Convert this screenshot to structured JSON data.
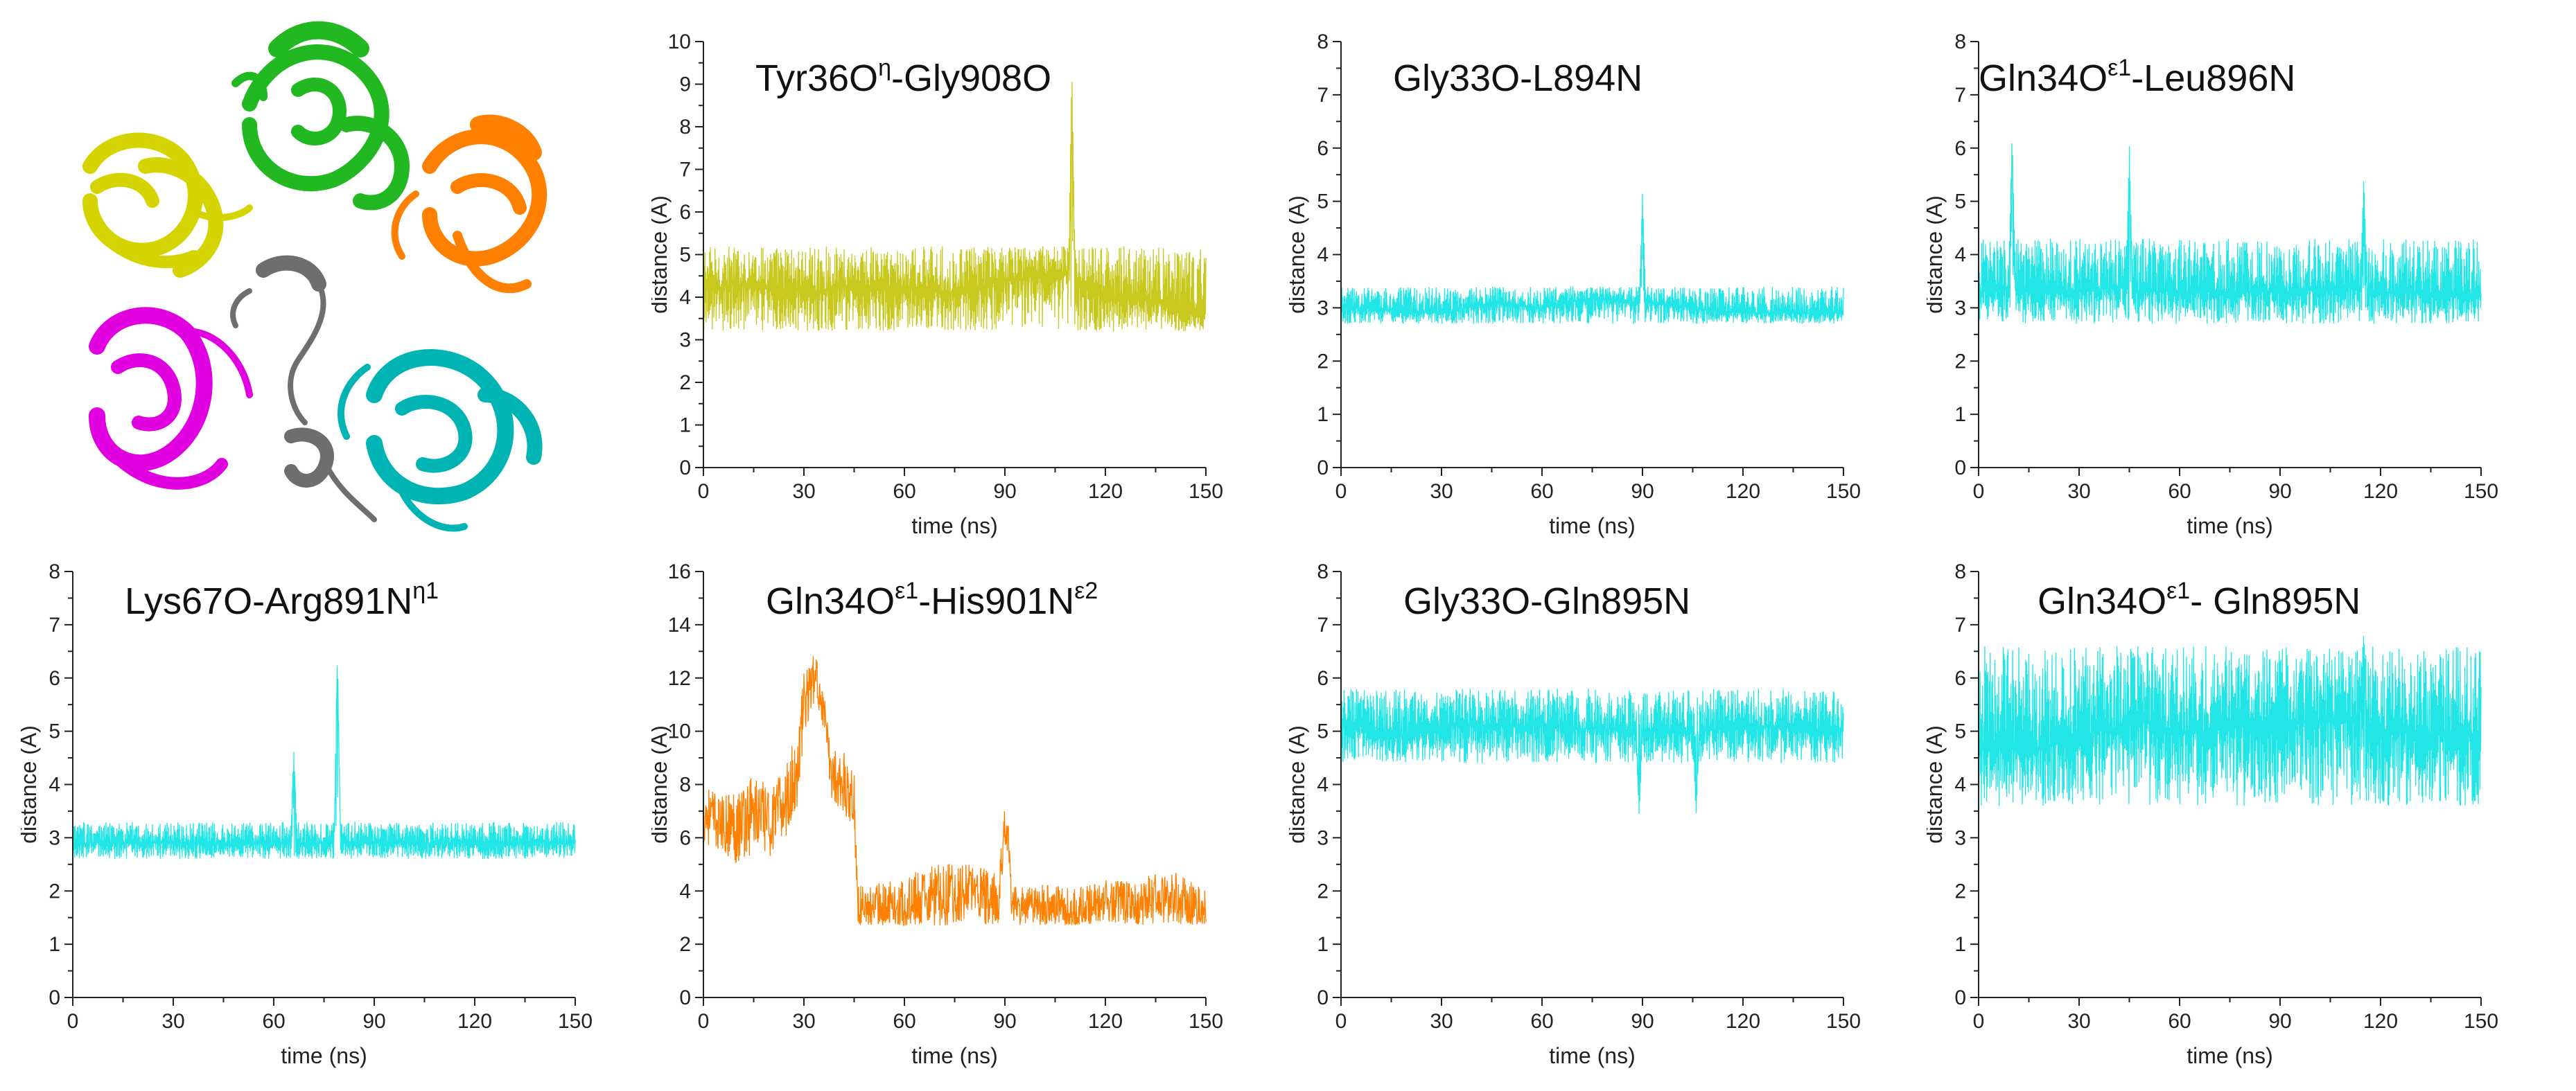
{
  "figure": {
    "structure_image": "protein-pentamer-ribbon-icon",
    "colors": {
      "olive": "#c8c81e",
      "cyan": "#22e6e6",
      "orange": "#ff8000"
    }
  },
  "chart_data": [
    {
      "id": "p1",
      "type": "line",
      "title_base": "Tyr36O",
      "title_sup": "η",
      "title_rest": "-Gly908O",
      "title_sup2": "",
      "title_rest2": "",
      "xlabel": "time (ns)",
      "ylabel": "distance (Å)",
      "xlim": [
        0,
        150
      ],
      "ylim": [
        0,
        10
      ],
      "xticks": [
        0,
        30,
        60,
        90,
        120,
        150
      ],
      "yticks": [
        0,
        1,
        2,
        3,
        4,
        5,
        6,
        7,
        8,
        9,
        10
      ],
      "color": "#c8c81e",
      "series": [
        {
          "name": "Tyr36O-Gly908O",
          "base": 4.2,
          "band": [
            3.2,
            5.2
          ],
          "x": [
            0,
            15,
            30,
            45,
            60,
            75,
            90,
            100,
            109,
            110,
            111,
            120,
            135,
            150
          ],
          "y": [
            4.2,
            4.3,
            4.1,
            4.3,
            4.2,
            4.1,
            4.4,
            4.5,
            4.6,
            9.4,
            4.4,
            4.0,
            3.9,
            3.6
          ]
        }
      ]
    },
    {
      "id": "p2",
      "type": "line",
      "title_base": "Gly33O-L894N",
      "title_sup": "",
      "title_rest": "",
      "title_sup2": "",
      "title_rest2": "",
      "xlabel": "time (ns)",
      "ylabel": "distance (Å)",
      "xlim": [
        0,
        150
      ],
      "ylim": [
        0,
        8
      ],
      "xticks": [
        0,
        30,
        60,
        90,
        120,
        150
      ],
      "yticks": [
        0,
        1,
        2,
        3,
        4,
        5,
        6,
        7,
        8
      ],
      "color": "#22e6e6",
      "series": [
        {
          "name": "Gly33O-L894N",
          "base": 2.95,
          "band": [
            2.7,
            3.4
          ],
          "x": [
            0,
            30,
            45,
            60,
            75,
            89,
            90,
            91,
            105,
            120,
            150
          ],
          "y": [
            3.0,
            2.9,
            3.1,
            3.0,
            3.2,
            3.1,
            5.1,
            3.1,
            3.0,
            2.9,
            2.9
          ]
        }
      ]
    },
    {
      "id": "p3",
      "type": "line",
      "title_base": "Gln34O",
      "title_sup": "ε1",
      "title_rest": "-Leu896N",
      "title_sup2": "",
      "title_rest2": "",
      "xlabel": "time (ns)",
      "ylabel": "distance (Å)",
      "xlim": [
        0,
        150
      ],
      "ylim": [
        0,
        8
      ],
      "xticks": [
        0,
        30,
        60,
        90,
        120,
        150
      ],
      "yticks": [
        0,
        1,
        2,
        3,
        4,
        5,
        6,
        7,
        8
      ],
      "color": "#22e6e6",
      "series": [
        {
          "name": "Gln34O-Leu896N",
          "base": 3.2,
          "band": [
            2.7,
            4.3
          ],
          "x": [
            0,
            9,
            10,
            11,
            30,
            44,
            45,
            46,
            90,
            114,
            115,
            116,
            150
          ],
          "y": [
            3.3,
            3.4,
            6.3,
            3.3,
            3.3,
            3.4,
            6.0,
            3.3,
            3.3,
            3.4,
            5.5,
            3.3,
            3.2
          ]
        }
      ]
    },
    {
      "id": "p4",
      "type": "line",
      "title_base": "Lys67O-Arg891N",
      "title_sup": "η1",
      "title_rest": "",
      "title_sup2": "",
      "title_rest2": "",
      "xlabel": "time (ns)",
      "ylabel": "distance (Å)",
      "xlim": [
        0,
        150
      ],
      "ylim": [
        0,
        8
      ],
      "xticks": [
        0,
        30,
        60,
        90,
        120,
        150
      ],
      "yticks": [
        0,
        1,
        2,
        3,
        4,
        5,
        6,
        7,
        8
      ],
      "color": "#22e6e6",
      "series": [
        {
          "name": "Lys67O-Arg891N",
          "base": 2.9,
          "band": [
            2.6,
            3.3
          ],
          "x": [
            0,
            30,
            65,
            66,
            67,
            78,
            79,
            80,
            100,
            150
          ],
          "y": [
            2.9,
            2.9,
            2.9,
            4.6,
            2.9,
            2.9,
            6.5,
            2.9,
            2.9,
            2.9
          ]
        }
      ]
    },
    {
      "id": "p5",
      "type": "line",
      "title_base": "Gln34O",
      "title_sup": "ε1",
      "title_rest": "-His901N",
      "title_sup2": "ε2",
      "title_rest2": "",
      "xlabel": "time (ns)",
      "ylabel": "distance (Å)",
      "xlim": [
        0,
        150
      ],
      "ylim": [
        0,
        16
      ],
      "xticks": [
        0,
        30,
        60,
        90,
        120,
        150
      ],
      "yticks": [
        0,
        2,
        4,
        6,
        8,
        10,
        12,
        14,
        16
      ],
      "color": "#ff8000",
      "series": [
        {
          "name": "Gln34O-His901N",
          "base": 0,
          "band": [
            0,
            0
          ],
          "x": [
            0,
            5,
            10,
            15,
            20,
            25,
            28,
            30,
            33,
            35,
            38,
            42,
            45,
            46,
            50,
            60,
            70,
            80,
            88,
            90,
            91,
            92,
            95,
            100,
            110,
            120,
            130,
            140,
            150
          ],
          "y": [
            7.0,
            6.5,
            6.5,
            7.0,
            6.5,
            7.5,
            8.5,
            11.0,
            12.0,
            11.5,
            8.5,
            8.0,
            7.5,
            3.5,
            3.3,
            3.5,
            3.8,
            4.0,
            3.6,
            6.5,
            6.0,
            3.4,
            3.4,
            3.5,
            3.3,
            3.5,
            3.6,
            3.8,
            3.4
          ],
          "noise": [
            1.2,
            1.0,
            1.5,
            1.6,
            1.2,
            1.5,
            1.5,
            1.2,
            1.0,
            0.8,
            1.0,
            1.2,
            1.0,
            0.8,
            0.9,
            1.1,
            1.2,
            1.1,
            1.0,
            0.8,
            0.7,
            0.8,
            0.8,
            0.8,
            0.9,
            0.9,
            0.9,
            1.0,
            0.8
          ]
        }
      ]
    },
    {
      "id": "p6",
      "type": "line",
      "title_base": "Gly33O-Gln895N",
      "title_sup": "",
      "title_rest": "",
      "title_sup2": "",
      "title_rest2": "",
      "xlabel": "time (ns)",
      "ylabel": "distance (Å)",
      "xlim": [
        0,
        150
      ],
      "ylim": [
        0,
        8
      ],
      "xticks": [
        0,
        30,
        60,
        90,
        120,
        150
      ],
      "yticks": [
        0,
        1,
        2,
        3,
        4,
        5,
        6,
        7,
        8
      ],
      "color": "#22e6e6",
      "series": [
        {
          "name": "Gly33O-Gln895N",
          "base": 5.1,
          "band": [
            4.4,
            5.8
          ],
          "x": [
            0,
            10,
            20,
            30,
            60,
            88,
            89,
            90,
            105,
            106,
            107,
            130,
            150
          ],
          "y": [
            5.2,
            5.0,
            4.9,
            5.1,
            5.1,
            5.0,
            3.4,
            5.0,
            5.0,
            3.4,
            5.0,
            5.1,
            5.0
          ]
        }
      ]
    },
    {
      "id": "p7",
      "type": "line",
      "title_base": "Gln34O",
      "title_sup": "ε1",
      "title_rest": "- Gln895N",
      "title_sup2": "",
      "title_rest2": "",
      "xlabel": "time (ns)",
      "ylabel": "distance (Å)",
      "xlim": [
        0,
        150
      ],
      "ylim": [
        0,
        8
      ],
      "xticks": [
        0,
        30,
        60,
        90,
        120,
        150
      ],
      "yticks": [
        0,
        1,
        2,
        3,
        4,
        5,
        6,
        7,
        8
      ],
      "color": "#22e6e6",
      "series": [
        {
          "name": "Gln34O-Gln895N",
          "base": 4.9,
          "band": [
            3.6,
            6.6
          ],
          "x": [
            0,
            15,
            30,
            48,
            60,
            70,
            90,
            114,
            115,
            116,
            130,
            150
          ],
          "y": [
            4.8,
            4.6,
            4.9,
            5.2,
            5.0,
            5.0,
            5.2,
            5.2,
            6.9,
            5.0,
            5.0,
            4.9
          ]
        }
      ]
    }
  ]
}
